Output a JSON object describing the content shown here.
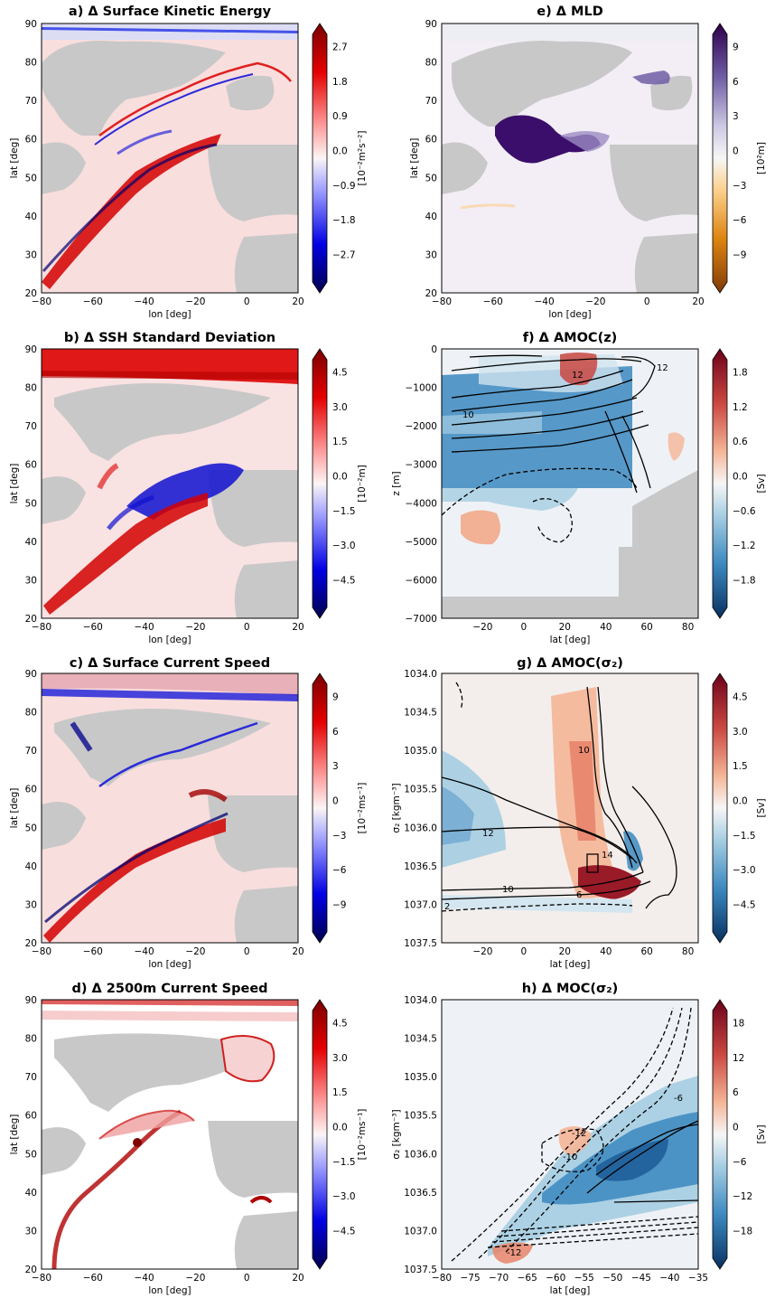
{
  "panels": [
    {
      "id": "a",
      "title": "a) Δ Surface Kinetic Energy",
      "kind": "map",
      "xlabel": "lon [deg]",
      "ylabel": "lat [deg]",
      "xticks": [
        "−80",
        "−60",
        "−40",
        "−20",
        "0",
        "20"
      ],
      "yticks": [
        "20",
        "30",
        "40",
        "50",
        "60",
        "70",
        "80",
        "90"
      ],
      "cbar": {
        "ticks": [
          "2.7",
          "1.8",
          "0.9",
          "0.0",
          "−0.9",
          "−1.8",
          "−2.7"
        ],
        "unit": "[10⁻²m²s⁻²]",
        "cmap": "seismic"
      }
    },
    {
      "id": "b",
      "title": "b) Δ SSH Standard Deviation",
      "kind": "map",
      "xlabel": "lon [deg]",
      "ylabel": "lat [deg]",
      "xticks": [
        "−80",
        "−60",
        "−40",
        "−20",
        "0",
        "20"
      ],
      "yticks": [
        "20",
        "30",
        "40",
        "50",
        "60",
        "70",
        "80",
        "90"
      ],
      "cbar": {
        "ticks": [
          "4.5",
          "3.0",
          "1.5",
          "0.0",
          "−1.5",
          "−3.0",
          "−4.5"
        ],
        "unit": "[10⁻²m]",
        "cmap": "seismic"
      }
    },
    {
      "id": "c",
      "title": "c) Δ Surface Current Speed",
      "kind": "map",
      "xlabel": "lon [deg]",
      "ylabel": "lat [deg]",
      "xticks": [
        "−80",
        "−60",
        "−40",
        "−20",
        "0",
        "20"
      ],
      "yticks": [
        "20",
        "30",
        "40",
        "50",
        "60",
        "70",
        "80",
        "90"
      ],
      "cbar": {
        "ticks": [
          "9",
          "6",
          "3",
          "0",
          "−3",
          "−6",
          "−9"
        ],
        "unit": "[10⁻²ms⁻¹]",
        "cmap": "seismic"
      }
    },
    {
      "id": "d",
      "title": "d) Δ 2500m Current Speed",
      "kind": "map",
      "xlabel": "lon [deg]",
      "ylabel": "lat [deg]",
      "xticks": [
        "−80",
        "−60",
        "−40",
        "−20",
        "0",
        "20"
      ],
      "yticks": [
        "20",
        "30",
        "40",
        "50",
        "60",
        "70",
        "80",
        "90"
      ],
      "cbar": {
        "ticks": [
          "4.5",
          "3.0",
          "1.5",
          "0.0",
          "−1.5",
          "−3.0",
          "−4.5"
        ],
        "unit": "[10⁻²ms⁻¹]",
        "cmap": "seismic"
      }
    },
    {
      "id": "e",
      "title": "e) Δ MLD",
      "kind": "map",
      "xlabel": "lon [deg]",
      "ylabel": "lat [deg]",
      "xticks": [
        "−80",
        "−60",
        "−40",
        "−20",
        "0",
        "20"
      ],
      "yticks": [
        "20",
        "30",
        "40",
        "50",
        "60",
        "70",
        "80",
        "90"
      ],
      "cbar": {
        "ticks": [
          "9",
          "6",
          "3",
          "0",
          "−3",
          "−6",
          "−9"
        ],
        "unit": "[10²m]",
        "cmap": "puor"
      }
    },
    {
      "id": "f",
      "title": "f) Δ AMOC(z)",
      "kind": "section",
      "xlabel": "lat [deg]",
      "ylabel": "z [m]",
      "xticks": [
        "−20",
        "0",
        "20",
        "40",
        "60",
        "80"
      ],
      "yticks": [
        "0",
        "−1000",
        "−2000",
        "−3000",
        "−4000",
        "−5000",
        "−6000",
        "−7000"
      ],
      "contour_labels": [
        "10",
        "12",
        "12"
      ],
      "cbar": {
        "ticks": [
          "1.8",
          "1.2",
          "0.6",
          "0.0",
          "−0.6",
          "−1.2",
          "−1.8"
        ],
        "unit": "[Sv]",
        "cmap": "rdbu"
      }
    },
    {
      "id": "g",
      "title": "g) Δ AMOC(σ₂)",
      "kind": "section",
      "xlabel": "lat [deg]",
      "ylabel": "σ₂ [kgm⁻³]",
      "xticks": [
        "−20",
        "0",
        "20",
        "40",
        "60",
        "80"
      ],
      "yticks": [
        "1034.0",
        "1034.5",
        "1035.0",
        "1035.5",
        "1036.0",
        "1036.5",
        "1037.0",
        "1037.5"
      ],
      "contour_labels": [
        "10",
        "12",
        "14",
        "10",
        "6",
        "2"
      ],
      "cbar": {
        "ticks": [
          "4.5",
          "3.0",
          "1.5",
          "0.0",
          "−1.5",
          "−3.0",
          "−4.5"
        ],
        "unit": "[Sv]",
        "cmap": "rdbu"
      }
    },
    {
      "id": "h",
      "title": "h) Δ MOC(σ₂)",
      "kind": "section",
      "xlabel": "lat [deg]",
      "ylabel": "σ₂ [kgm⁻³]",
      "xticks": [
        "−80",
        "−75",
        "−70",
        "−65",
        "−60",
        "−55",
        "−50",
        "−45",
        "−40",
        "−35"
      ],
      "yticks": [
        "1034.0",
        "1034.5",
        "1035.0",
        "1035.5",
        "1036.0",
        "1036.5",
        "1037.0",
        "1037.5"
      ],
      "contour_labels": [
        "-6",
        "-12",
        "-10",
        "-12"
      ],
      "cbar": {
        "ticks": [
          "18",
          "12",
          "6",
          "0",
          "−6",
          "−12",
          "−18"
        ],
        "unit": "[Sv]",
        "cmap": "rdbu"
      }
    }
  ],
  "chart_data": [
    {
      "type": "heatmap",
      "title": "a) Δ Surface Kinetic Energy",
      "xlabel": "lon [deg]",
      "ylabel": "lat [deg]",
      "xlim": [
        -80,
        20
      ],
      "ylim": [
        20,
        90
      ],
      "colorbar_range": [
        -2.7,
        2.7
      ],
      "colorbar_unit": "[10⁻²m²s⁻²]"
    },
    {
      "type": "heatmap",
      "title": "b) Δ SSH Standard Deviation",
      "xlabel": "lon [deg]",
      "ylabel": "lat [deg]",
      "xlim": [
        -80,
        20
      ],
      "ylim": [
        20,
        90
      ],
      "colorbar_range": [
        -4.5,
        4.5
      ],
      "colorbar_unit": "[10⁻²m]"
    },
    {
      "type": "heatmap",
      "title": "c) Δ Surface Current Speed",
      "xlabel": "lon [deg]",
      "ylabel": "lat [deg]",
      "xlim": [
        -80,
        20
      ],
      "ylim": [
        20,
        90
      ],
      "colorbar_range": [
        -9,
        9
      ],
      "colorbar_unit": "[10⁻²ms⁻¹]"
    },
    {
      "type": "heatmap",
      "title": "d) Δ 2500m Current Speed",
      "xlabel": "lon [deg]",
      "ylabel": "lat [deg]",
      "xlim": [
        -80,
        20
      ],
      "ylim": [
        20,
        90
      ],
      "colorbar_range": [
        -4.5,
        4.5
      ],
      "colorbar_unit": "[10⁻²ms⁻¹]"
    },
    {
      "type": "heatmap",
      "title": "e) Δ MLD",
      "xlabel": "lon [deg]",
      "ylabel": "lat [deg]",
      "xlim": [
        -80,
        20
      ],
      "ylim": [
        20,
        90
      ],
      "colorbar_range": [
        -9,
        9
      ],
      "colorbar_unit": "[10²m]"
    },
    {
      "type": "heatmap",
      "title": "f) Δ AMOC(z)",
      "xlabel": "lat [deg]",
      "ylabel": "z [m]",
      "xlim": [
        -35,
        90
      ],
      "ylim": [
        -7000,
        0
      ],
      "colorbar_range": [
        -1.8,
        1.8
      ],
      "colorbar_unit": "[Sv]"
    },
    {
      "type": "heatmap",
      "title": "g) Δ AMOC(σ₂)",
      "xlabel": "lat [deg]",
      "ylabel": "σ₂ [kgm⁻³]",
      "xlim": [
        -35,
        90
      ],
      "ylim": [
        1037.5,
        1034.0
      ],
      "colorbar_range": [
        -4.5,
        4.5
      ],
      "colorbar_unit": "[Sv]"
    },
    {
      "type": "heatmap",
      "title": "h) Δ MOC(σ₂)",
      "xlabel": "lat [deg]",
      "ylabel": "σ₂ [kgm⁻³]",
      "xlim": [
        -80,
        -35
      ],
      "ylim": [
        1037.5,
        1034.0
      ],
      "colorbar_range": [
        -18,
        18
      ],
      "colorbar_unit": "[Sv]"
    }
  ]
}
